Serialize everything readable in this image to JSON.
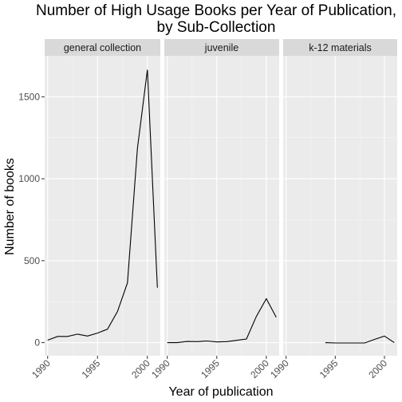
{
  "chart_data": {
    "type": "line",
    "title": "Number of High Usage Books per Year of Publication,\nby Sub-Collection",
    "xlabel": "Year of publication",
    "ylabel": "Number of books",
    "xlim": [
      1989.7,
      2001.3
    ],
    "ylim": [
      -80,
      1750
    ],
    "xticks": [
      1990,
      1995,
      2000
    ],
    "yticks": [
      0,
      500,
      1000,
      1500
    ],
    "grid": true,
    "legend": "none",
    "colors": {
      "panel_bg": "#ebebeb",
      "strip_bg": "#d9d9d9",
      "grid_major": "#ffffff",
      "grid_minor": "#f5f5f5",
      "line": "#000000"
    },
    "facets": [
      {
        "name": "general collection",
        "x": [
          1990,
          1991,
          1992,
          1993,
          1994,
          1995,
          1996,
          1997,
          1998,
          1999,
          2000,
          2001
        ],
        "y": [
          15,
          38,
          38,
          52,
          40,
          58,
          82,
          190,
          365,
          1185,
          1665,
          335
        ]
      },
      {
        "name": "juvenile",
        "x": [
          1990,
          1991,
          1992,
          1993,
          1994,
          1995,
          1996,
          1997,
          1998,
          1999,
          2000,
          2001
        ],
        "y": [
          0,
          0,
          7,
          6,
          10,
          4,
          6,
          14,
          22,
          160,
          268,
          155
        ]
      },
      {
        "name": "k-12 materials",
        "x": [
          1994,
          1995,
          1996,
          1997,
          1998,
          1999,
          2000,
          2001
        ],
        "y": [
          0,
          -2,
          -2,
          -2,
          -2,
          20,
          40,
          0
        ]
      }
    ]
  }
}
